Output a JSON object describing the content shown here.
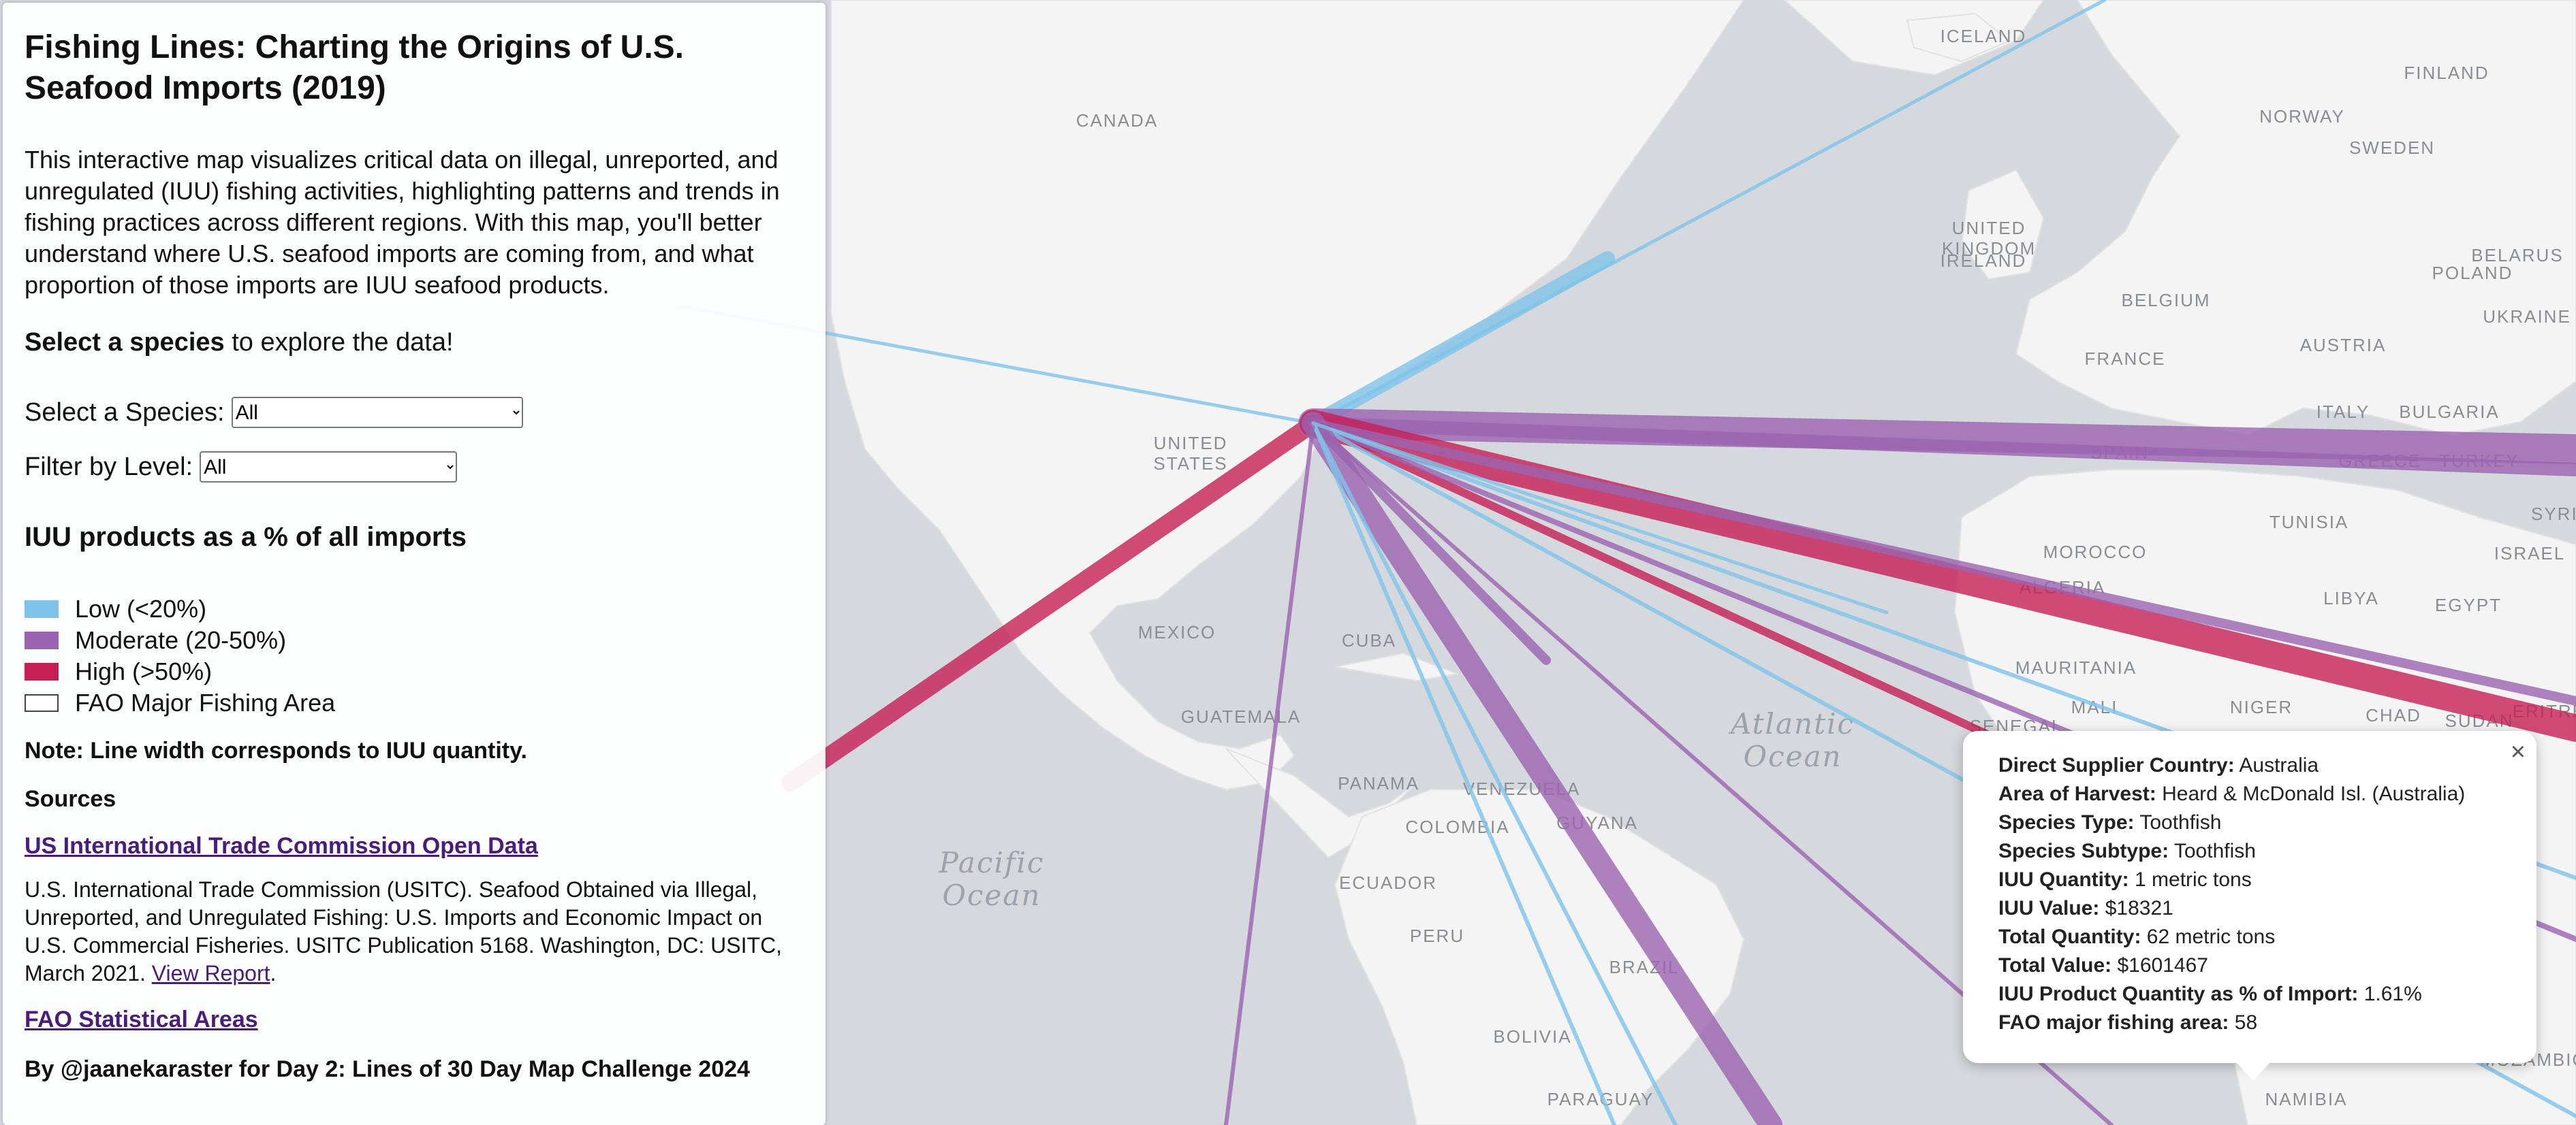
{
  "panel": {
    "title": "Fishing Lines: Charting the Origins of U.S. Seafood Imports (2019)",
    "description": "This interactive map visualizes critical data on illegal, unreported, and unregulated (IUU) fishing activities, highlighting patterns and trends in fishing practices across different regions. With this map, you'll better understand where U.S. seafood imports are coming from, and what proportion of those imports are IUU seafood products.",
    "cta_bold": "Select a species",
    "cta_rest": " to explore the data!",
    "species_label": "Select a Species:",
    "species_value": "All",
    "level_label": "Filter by Level:",
    "level_value": "All",
    "legend_title": "IUU products as a % of all imports",
    "legend": [
      {
        "label": "Low (<20%)",
        "color": "#7fc3ea"
      },
      {
        "label": "Moderate (20-50%)",
        "color": "#9b64b0"
      },
      {
        "label": "High (>50%)",
        "color": "#c61f55"
      },
      {
        "label": "FAO Major Fishing Area",
        "color": "#ffffff"
      }
    ],
    "note": "Note: Line width corresponds to IUU quantity.",
    "sources_title": "Sources",
    "source1_link": "US International Trade Commission Open Data",
    "citation": "U.S. International Trade Commission (USITC). Seafood Obtained via Illegal, Unreported, and Unregulated Fishing: U.S. Imports and Economic Impact on U.S. Commercial Fisheries. USITC Publication 5168. Washington, DC: USITC, March 2021.",
    "citation_link": "View Report",
    "source2_link": "FAO Statistical Areas",
    "credit": "By @jaanekaraster for Day 2: Lines of 30 Day Map Challenge 2024"
  },
  "map": {
    "country_labels": [
      "ICELAND",
      "FINLAND",
      "CANADA",
      "NORWAY",
      "SWEDEN",
      "UNITED KINGDOM",
      "IRELAND",
      "POLAND",
      "BELARUS",
      "BELGIUM",
      "UKRAINE",
      "AUSTRIA",
      "FRANCE",
      "UNITED STATES",
      "ITALY",
      "BULGARIA",
      "SPAIN",
      "GREECE",
      "TURKEY",
      "TUNISIA",
      "SYRIA",
      "MOROCCO",
      "ISRAEL",
      "ALGERIA",
      "LIBYA",
      "EGYPT",
      "MEXICO",
      "CUBA",
      "MAURITANIA",
      "MALI",
      "NIGER",
      "CHAD",
      "SUDAN",
      "ERITREA",
      "GUATEMALA",
      "SENEGAL",
      "PANAMA",
      "VENEZUELA",
      "GUYANA",
      "COLOMBIA",
      "ECUADOR",
      "PERU",
      "BRAZIL",
      "BOLIVIA",
      "PARAGUAY",
      "NAMIBIA",
      "MOZAMBIQUE"
    ],
    "ocean_labels": [
      "Atlantic Ocean",
      "Pacific Ocean"
    ]
  },
  "popup": {
    "close": "×",
    "fields": [
      {
        "label": "Direct Supplier Country:",
        "value": "Australia"
      },
      {
        "label": "Area of Harvest:",
        "value": "Heard & McDonald Isl. (Australia)"
      },
      {
        "label": "Species Type:",
        "value": "Toothfish"
      },
      {
        "label": "Species Subtype:",
        "value": "Toothfish"
      },
      {
        "label": "IUU Quantity:",
        "value": "1 metric tons"
      },
      {
        "label": "IUU Value:",
        "value": "$18321"
      },
      {
        "label": "Total Quantity:",
        "value": "62 metric tons"
      },
      {
        "label": "Total Value:",
        "value": "$1601467"
      },
      {
        "label": "IUU Product Quantity as % of Import:",
        "value": "1.61%"
      },
      {
        "label": "FAO major fishing area:",
        "value": "58"
      }
    ]
  },
  "colors": {
    "low": "#7fc3ea",
    "moderate": "#9b64b0",
    "high": "#c61f55"
  }
}
